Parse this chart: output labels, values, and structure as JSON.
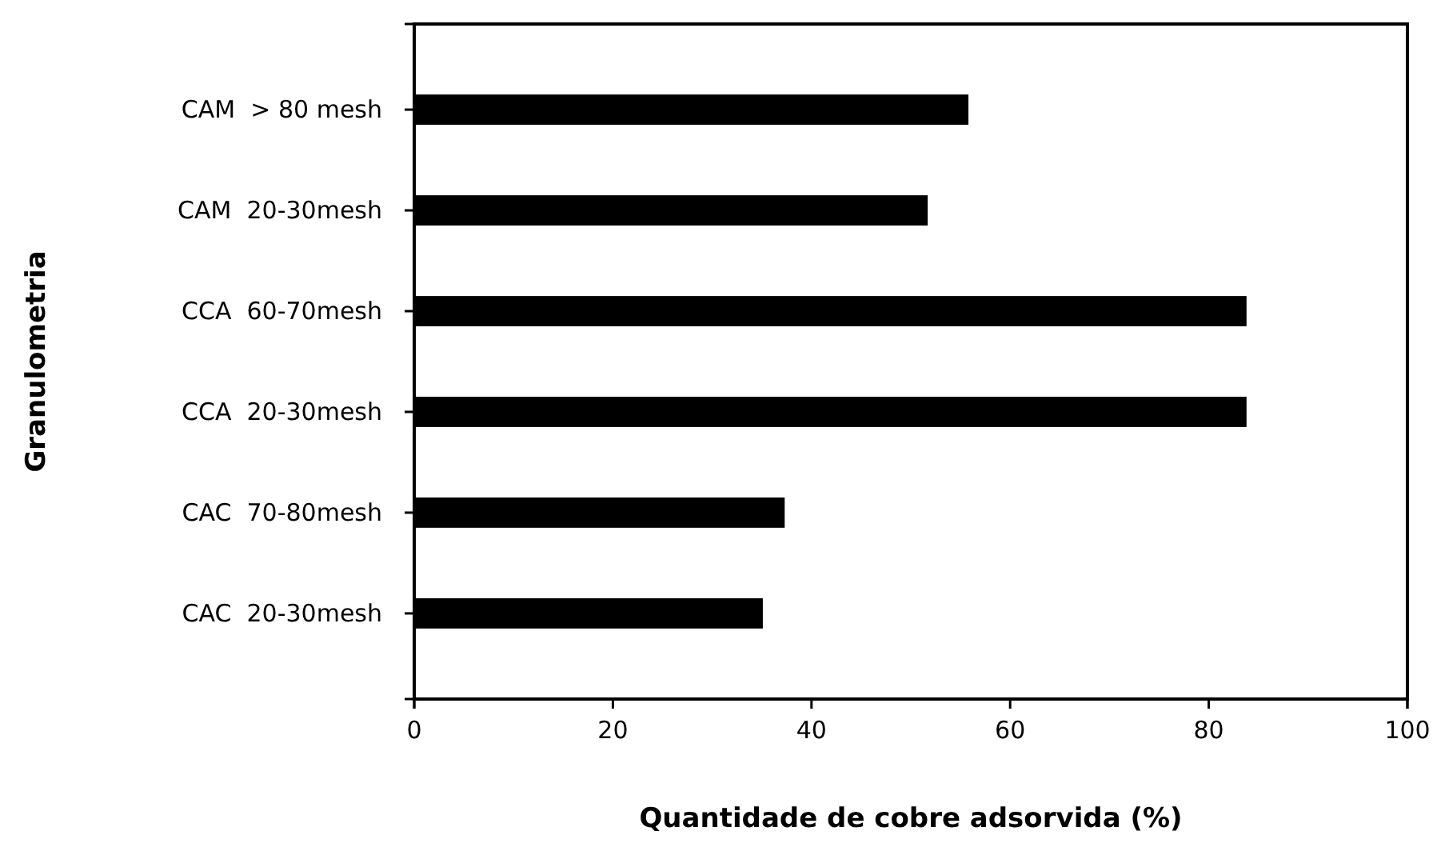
{
  "chart_data": {
    "type": "bar",
    "orientation": "horizontal",
    "xlabel": "Quantidade de cobre adsorvida (%)",
    "ylabel": "Granulometria",
    "categories": [
      "CAM  > 80 mesh",
      "CAM  20-30mesh",
      "CCA  60-70mesh",
      "CCA  20-30mesh",
      "CAC  70-80mesh",
      "CAC  20-30mesh"
    ],
    "values": [
      55.8,
      51.7,
      83.8,
      83.8,
      37.3,
      35.1
    ],
    "color": "#000000",
    "xlim": [
      0,
      100
    ],
    "xticks": [
      0,
      20,
      40,
      60,
      80,
      100
    ]
  }
}
